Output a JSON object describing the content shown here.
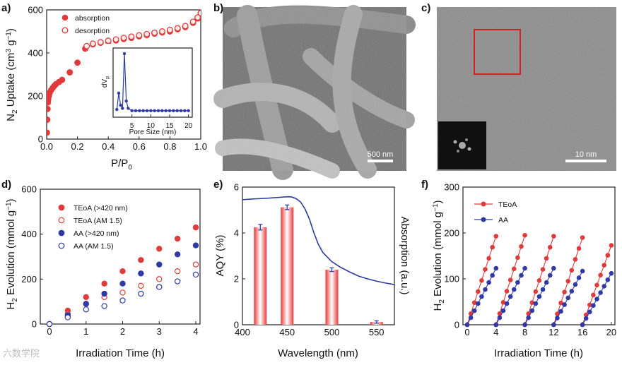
{
  "panel_labels": [
    "a)",
    "b)",
    "c)",
    "d)",
    "e)",
    "f)"
  ],
  "micrographs": {
    "b_scale": "500 nm",
    "c_scale": "10 nm"
  },
  "watermark": "六数学院",
  "colors": {
    "red": "#e03a3a",
    "blue": "#2f3aa6",
    "bar_red": "#e63a3a"
  },
  "chart_data": [
    {
      "panel": "a",
      "type": "scatter",
      "xlabel_main": "P/P",
      "xlabel_sub": "0",
      "ylabel_parts": [
        "N",
        "2",
        " Uptake (cm",
        "3",
        " g",
        "−1",
        ")"
      ],
      "xlim": [
        0,
        1.0
      ],
      "ylim": [
        0,
        600
      ],
      "xticks": [
        "0.0",
        "0.2",
        "0.4",
        "0.6",
        "0.8",
        "1.0"
      ],
      "yticks": [
        "0",
        "200",
        "400",
        "600"
      ],
      "legend": [
        "absorption",
        "desorption"
      ],
      "series": [
        {
          "name": "absorption",
          "style": "filled",
          "x": [
            0.002,
            0.004,
            0.006,
            0.008,
            0.01,
            0.015,
            0.02,
            0.03,
            0.04,
            0.05,
            0.06,
            0.08,
            0.1,
            0.15,
            0.2,
            0.25,
            0.3,
            0.35,
            0.4,
            0.45,
            0.5,
            0.55,
            0.6,
            0.65,
            0.7,
            0.75,
            0.8,
            0.85,
            0.9,
            0.95,
            0.98,
            1.0
          ],
          "y": [
            30,
            90,
            140,
            170,
            185,
            200,
            215,
            228,
            238,
            247,
            255,
            265,
            275,
            310,
            355,
            420,
            440,
            447,
            452,
            458,
            465,
            470,
            477,
            483,
            490,
            495,
            500,
            510,
            520,
            540,
            560,
            585
          ]
        },
        {
          "name": "desorption",
          "style": "open",
          "x": [
            1.0,
            0.98,
            0.95,
            0.9,
            0.85,
            0.8,
            0.75,
            0.7,
            0.65,
            0.6,
            0.55,
            0.5,
            0.45,
            0.4,
            0.35,
            0.3,
            0.26
          ],
          "y": [
            585,
            565,
            545,
            525,
            515,
            507,
            500,
            494,
            488,
            482,
            476,
            470,
            463,
            457,
            450,
            443,
            432
          ]
        }
      ],
      "inset": {
        "xlabel": "Pore Size (nm)",
        "ylabel_main": "dV",
        "ylabel_sub": "p",
        "xticks": [
          "5",
          "10",
          "15",
          "20"
        ],
        "xlim": [
          0,
          21
        ],
        "ylim": [
          0,
          1
        ],
        "x": [
          1.0,
          1.5,
          2.0,
          2.5,
          3.0,
          3.5,
          4.0,
          5,
          6,
          7,
          8,
          9,
          10,
          11,
          12,
          13,
          14,
          15,
          16,
          17,
          18,
          19,
          20
        ],
        "y": [
          0.08,
          0.35,
          0.15,
          0.1,
          1.0,
          0.22,
          0.1,
          0.06,
          0.06,
          0.06,
          0.06,
          0.06,
          0.06,
          0.06,
          0.06,
          0.06,
          0.06,
          0.06,
          0.06,
          0.06,
          0.06,
          0.06,
          0.06
        ]
      }
    },
    {
      "panel": "d",
      "type": "scatter",
      "xlabel": "Irradiation Time (h)",
      "ylabel_parts": [
        "H",
        "2",
        " Evolution (mmol g",
        "−1",
        ")"
      ],
      "xlim": [
        0,
        4
      ],
      "ylim": [
        0,
        600
      ],
      "xticks": [
        "0",
        "1",
        "2",
        "3",
        "4"
      ],
      "yticks": [
        "0",
        "200",
        "400",
        "600"
      ],
      "x": [
        0,
        0.5,
        1.0,
        1.5,
        2.0,
        2.5,
        3.0,
        3.5,
        4.0
      ],
      "series": [
        {
          "name": "TEoA (>420 nm)",
          "color": "red",
          "style": "filled",
          "y": [
            0,
            60,
            120,
            180,
            235,
            285,
            335,
            380,
            430
          ]
        },
        {
          "name": "TEoA (AM 1.5)",
          "color": "red",
          "style": "open",
          "y": [
            0,
            45,
            90,
            120,
            140,
            170,
            200,
            235,
            265
          ]
        },
        {
          "name": "AA (>420 nm)",
          "color": "blue",
          "style": "filled",
          "y": [
            0,
            40,
            90,
            135,
            180,
            225,
            265,
            310,
            350
          ]
        },
        {
          "name": "AA (AM 1.5)",
          "color": "blue",
          "style": "open",
          "y": [
            0,
            30,
            65,
            80,
            105,
            135,
            165,
            190,
            220
          ]
        }
      ]
    },
    {
      "panel": "e",
      "type": "bar",
      "xlabel": "Wavelength (nm)",
      "ylabel": "AQY (%)",
      "ylabel_right": "Absorption (a.u.)",
      "xlim": [
        400,
        570
      ],
      "ylim": [
        0,
        6
      ],
      "xticks": [
        "400",
        "450",
        "500",
        "550"
      ],
      "yticks": [
        "0",
        "2",
        "4",
        "6"
      ],
      "bars": {
        "x": [
          420,
          450,
          500,
          550
        ],
        "values": [
          4.25,
          5.12,
          2.4,
          0.12
        ],
        "errors": [
          0.12,
          0.1,
          0.08,
          0.05
        ]
      },
      "absorption_curve": {
        "x": [
          400,
          410,
          420,
          430,
          440,
          450,
          455,
          460,
          465,
          470,
          475,
          480,
          485,
          490,
          500,
          510,
          520,
          530,
          540,
          550,
          560,
          570
        ],
        "y": [
          5.45,
          5.48,
          5.5,
          5.52,
          5.55,
          5.58,
          5.57,
          5.5,
          5.35,
          5.05,
          4.6,
          4.0,
          3.5,
          3.15,
          2.75,
          2.5,
          2.3,
          2.12,
          2.0,
          1.9,
          1.82,
          1.75
        ]
      }
    },
    {
      "panel": "f",
      "type": "line",
      "xlabel": "Irradiation Time (h)",
      "ylabel_parts": [
        "H",
        "2",
        " Evolution (mmol g",
        "−1",
        ")"
      ],
      "xlim": [
        0,
        20.5
      ],
      "ylim": [
        0,
        300
      ],
      "xticks": [
        "0",
        "4",
        "8",
        "12",
        "16",
        "20"
      ],
      "yticks": [
        "0",
        "100",
        "200",
        "300"
      ],
      "cycles": 5,
      "cycle_length_h": 4,
      "series": [
        {
          "name": "TEoA",
          "color": "red",
          "cycle_end_values": [
            193,
            195,
            193,
            190,
            173
          ]
        },
        {
          "name": "AA",
          "color": "blue",
          "cycle_end_values": [
            123,
            123,
            123,
            117,
            112
          ]
        }
      ]
    }
  ]
}
